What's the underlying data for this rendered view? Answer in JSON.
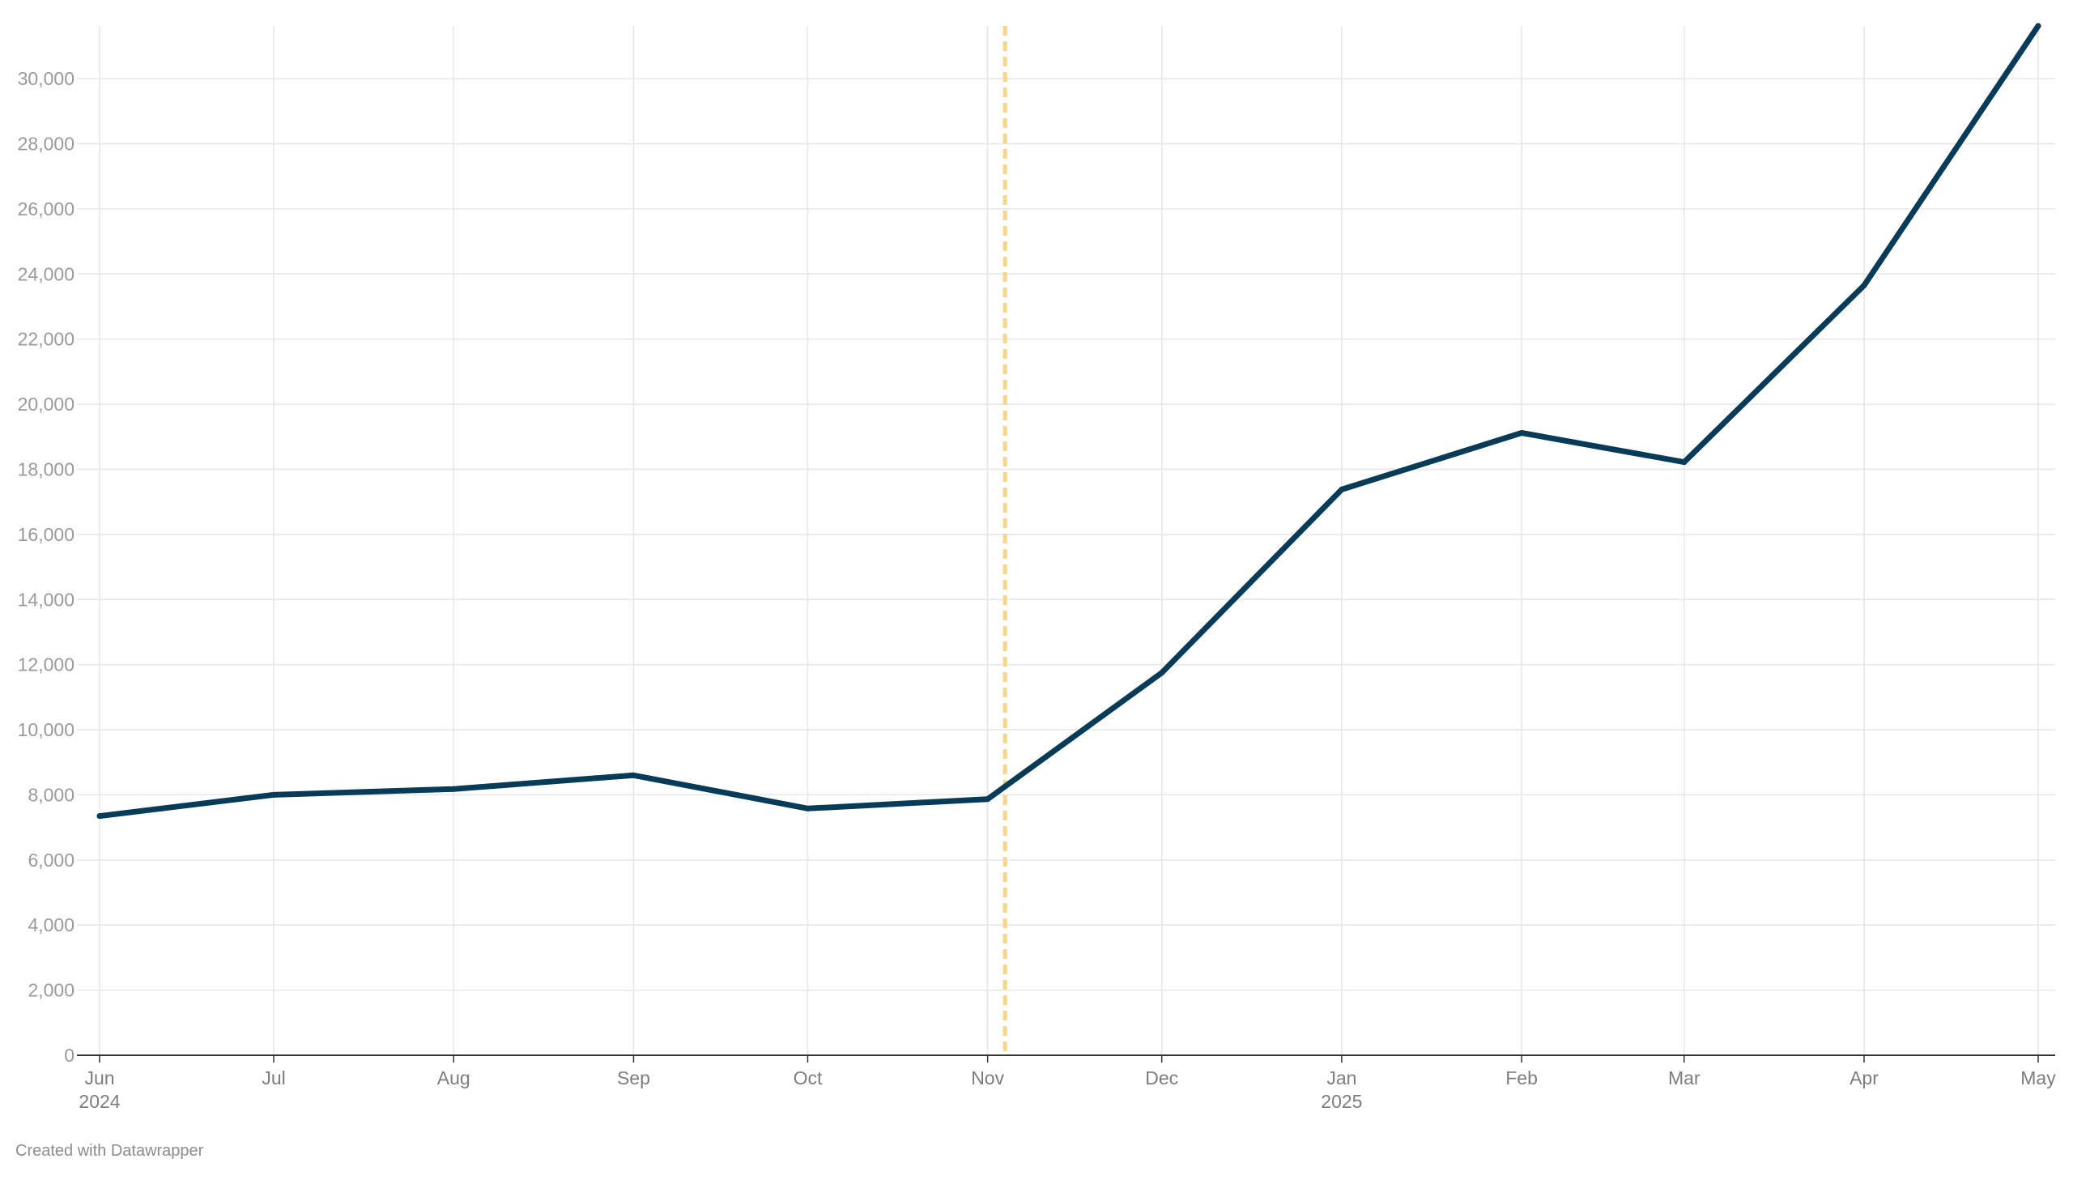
{
  "chart_data": {
    "type": "line",
    "title": "",
    "xlabel": "",
    "ylabel": "",
    "x": [
      "2024-06",
      "2024-07",
      "2024-08",
      "2024-09",
      "2024-10",
      "2024-11",
      "2024-12",
      "2025-01",
      "2025-02",
      "2025-03",
      "2025-04",
      "2025-05"
    ],
    "x_tick_labels": [
      {
        "month": "Jun",
        "year": "2024"
      },
      {
        "month": "Jul",
        "year": ""
      },
      {
        "month": "Aug",
        "year": ""
      },
      {
        "month": "Sep",
        "year": ""
      },
      {
        "month": "Oct",
        "year": ""
      },
      {
        "month": "Nov",
        "year": ""
      },
      {
        "month": "Dec",
        "year": ""
      },
      {
        "month": "Jan",
        "year": "2025"
      },
      {
        "month": "Feb",
        "year": ""
      },
      {
        "month": "Mar",
        "year": ""
      },
      {
        "month": "Apr",
        "year": ""
      },
      {
        "month": "May",
        "year": ""
      }
    ],
    "series": [
      {
        "values": [
          7350,
          8000,
          8180,
          8600,
          7580,
          7870,
          11750,
          17380,
          19120,
          18220,
          23650,
          31620
        ]
      }
    ],
    "ylim": [
      0,
      31620
    ],
    "y_ticks": [
      0,
      2000,
      4000,
      6000,
      8000,
      10000,
      12000,
      14000,
      16000,
      18000,
      20000,
      22000,
      24000,
      26000,
      28000,
      30000
    ],
    "y_tick_labels": [
      "0",
      "2,000",
      "4,000",
      "6,000",
      "8,000",
      "10,000",
      "12,000",
      "14,000",
      "16,000",
      "18,000",
      "20,000",
      "22,000",
      "24,000",
      "26,000",
      "28,000",
      "30,000"
    ],
    "reference_line": {
      "x": "2024-11-04",
      "style": "dashed"
    },
    "grid": true,
    "colors": {
      "line": "#073b57",
      "reference": "#f6d58c",
      "grid": "#e6e6e6",
      "axis": "#333333"
    }
  },
  "footer": {
    "credit": "Created with Datawrapper"
  }
}
